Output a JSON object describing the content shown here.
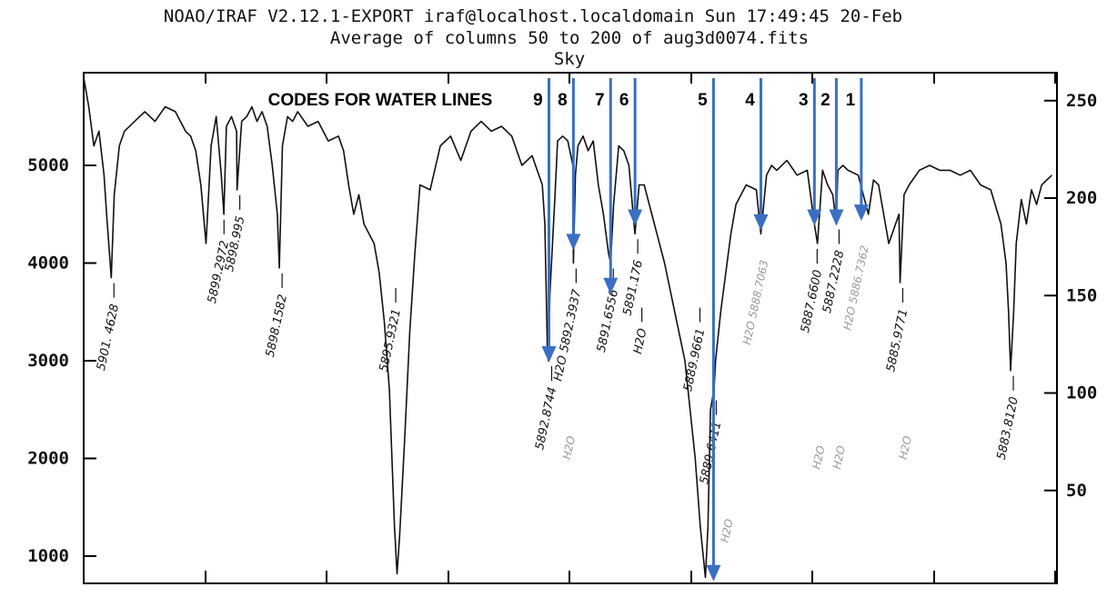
{
  "header": {
    "line1": "NOAO/IRAF V2.12.1-EXPORT iraf@localhost.localdomain Sun 17:49:45 20-Feb",
    "line2": "Average of columns 50 to 200 of aug3d0074.fits",
    "line3": "Sky"
  },
  "codes_title": "CODES FOR WATER LINES",
  "colors": {
    "spectrum": "#111111",
    "arrow": "#3a6fc4",
    "axis": "#000000",
    "note_grey": "#9a9a9a"
  },
  "chart_data": {
    "type": "line",
    "title": "Average of columns 50 to 200 of aug3d0074.fits",
    "subtitle": "Sky",
    "xlabel": "",
    "ylabel": "",
    "x_direction": "wavelength decreasing to the right",
    "xlim": [
      5902.0,
      5882.9
    ],
    "ylim": [
      620,
      5500
    ],
    "y_ticks": [
      1000,
      2000,
      3000,
      4000,
      5000
    ],
    "y_right_ticks": [
      50,
      100,
      150,
      200,
      250
    ],
    "grid": false,
    "series": [
      {
        "x": [
          5902.0,
          5901.9,
          5901.8,
          5901.7,
          5901.6,
          5901.55,
          5901.46,
          5901.4,
          5901.3,
          5901.2,
          5901.0,
          5900.8,
          5900.6,
          5900.4,
          5900.2,
          5900.0,
          5899.9,
          5899.8,
          5899.7,
          5899.6,
          5899.5,
          5899.4,
          5899.3,
          5899.25,
          5899.2,
          5899.1,
          5899.0,
          5898.99,
          5898.9,
          5898.8,
          5898.7,
          5898.6,
          5898.5,
          5898.4,
          5898.3,
          5898.2,
          5898.16,
          5898.1,
          5898.0,
          5897.9,
          5897.8,
          5897.6,
          5897.4,
          5897.2,
          5897.0,
          5896.9,
          5896.8,
          5896.7,
          5896.6,
          5896.5,
          5896.4,
          5896.3,
          5896.2,
          5896.1,
          5896.0,
          5895.95,
          5895.9,
          5895.85,
          5895.8,
          5895.7,
          5895.6,
          5895.5,
          5895.4,
          5895.2,
          5895.0,
          5894.8,
          5894.6,
          5894.4,
          5894.2,
          5894.0,
          5893.8,
          5893.6,
          5893.4,
          5893.2,
          5893.0,
          5892.95,
          5892.9,
          5892.88,
          5892.85,
          5892.8,
          5892.75,
          5892.7,
          5892.6,
          5892.5,
          5892.4,
          5892.39,
          5892.35,
          5892.3,
          5892.2,
          5892.1,
          5892.0,
          5891.9,
          5891.8,
          5891.7,
          5891.66,
          5891.6,
          5891.5,
          5891.4,
          5891.3,
          5891.2,
          5891.18,
          5891.1,
          5891.0,
          5890.9,
          5890.8,
          5890.6,
          5890.4,
          5890.2,
          5890.0,
          5889.9,
          5889.8,
          5889.75,
          5889.7,
          5889.65,
          5889.64,
          5889.6,
          5889.5,
          5889.4,
          5889.3,
          5889.2,
          5889.0,
          5888.8,
          5888.71,
          5888.6,
          5888.5,
          5888.4,
          5888.2,
          5888.0,
          5887.8,
          5887.66,
          5887.6,
          5887.5,
          5887.4,
          5887.3,
          5887.23,
          5887.2,
          5887.1,
          5887.0,
          5886.8,
          5886.6,
          5886.5,
          5886.4,
          5886.2,
          5886.0,
          5885.98,
          5885.9,
          5885.8,
          5885.6,
          5885.4,
          5885.2,
          5885.0,
          5884.8,
          5884.6,
          5884.4,
          5884.2,
          5884.0,
          5883.9,
          5883.85,
          5883.81,
          5883.75,
          5883.7,
          5883.6,
          5883.5,
          5883.4,
          5883.3,
          5883.2,
          5883.1,
          5883.0
        ],
        "y": [
          5900,
          5600,
          5200,
          5350,
          4900,
          4500,
          3850,
          4700,
          5200,
          5350,
          5450,
          5550,
          5450,
          5600,
          5550,
          5350,
          5300,
          5150,
          4800,
          4200,
          5200,
          5500,
          4900,
          4500,
          5400,
          5500,
          5350,
          4750,
          5450,
          5500,
          5600,
          5450,
          5550,
          5400,
          5000,
          4500,
          3950,
          5200,
          5500,
          5450,
          5550,
          5400,
          5450,
          5250,
          5300,
          5150,
          4800,
          4500,
          4700,
          4400,
          4300,
          4200,
          3900,
          3400,
          2700,
          2000,
          1300,
          820,
          1200,
          2200,
          3300,
          4100,
          4800,
          4750,
          5200,
          5300,
          5050,
          5350,
          5450,
          5350,
          5400,
          5300,
          5000,
          5100,
          4800,
          4400,
          3100,
          3000,
          3700,
          4200,
          4700,
          5250,
          5300,
          5250,
          5000,
          4000,
          4900,
          5200,
          5300,
          5150,
          5250,
          4800,
          4500,
          4100,
          4000,
          4600,
          5200,
          5150,
          5000,
          4400,
          4300,
          4800,
          4800,
          4600,
          4400,
          4000,
          3500,
          3000,
          2000,
          1300,
          780,
          1300,
          2500,
          2650,
          2600,
          3000,
          3500,
          3900,
          4300,
          4600,
          4800,
          4750,
          4300,
          4900,
          5000,
          4950,
          5050,
          4900,
          4950,
          4400,
          4200,
          4950,
          4800,
          4700,
          4400,
          4950,
          5000,
          4950,
          4900,
          4500,
          4850,
          4800,
          4200,
          4500,
          3800,
          4700,
          4800,
          4950,
          5000,
          4950,
          4950,
          4900,
          4950,
          4800,
          4750,
          4400,
          4000,
          3500,
          2900,
          3500,
          4200,
          4650,
          4400,
          4750,
          4600,
          4800,
          4850,
          4900
        ]
      }
    ],
    "annotations": [
      {
        "text": "5901. 4628",
        "x": 5901.46,
        "y": 3850,
        "color": "black"
      },
      {
        "text": "5899.2972",
        "x": 5899.3,
        "y": 4500,
        "color": "black"
      },
      {
        "text": "5898.995",
        "x": 5898.99,
        "y": 4750,
        "color": "black"
      },
      {
        "text": "5898.1582",
        "x": 5898.16,
        "y": 3950,
        "color": "black"
      },
      {
        "text": "5895.9321",
        "x": 5895.93,
        "y": 3800,
        "color": "black"
      },
      {
        "text": "5892.8744",
        "x": 5892.87,
        "y": 3000,
        "color": "black"
      },
      {
        "text": "H2O",
        "x": 5892.5,
        "y": 2500,
        "color": "grey"
      },
      {
        "text": "H2O 5892.3937",
        "x": 5892.39,
        "y": 4000,
        "color": "black"
      },
      {
        "text": "5891.6556",
        "x": 5891.66,
        "y": 4000,
        "color": "black"
      },
      {
        "text": "5891.176",
        "x": 5891.18,
        "y": 4300,
        "color": "black"
      },
      {
        "text": "H2O",
        "x": 5891.1,
        "y": 3600,
        "color": "black"
      },
      {
        "text": "5889.9661",
        "x": 5889.96,
        "y": 3600,
        "color": "black"
      },
      {
        "text": "5889.6411",
        "x": 5889.64,
        "y": 2650,
        "color": "black"
      },
      {
        "text": "H2O",
        "x": 5889.4,
        "y": 1650,
        "color": "grey"
      },
      {
        "text": "H2O 5888.7063",
        "x": 5888.71,
        "y": 4300,
        "color": "grey"
      },
      {
        "text": "5887.6600",
        "x": 5887.66,
        "y": 4200,
        "color": "black"
      },
      {
        "text": "H2O",
        "x": 5887.6,
        "y": 2400,
        "color": "grey"
      },
      {
        "text": "5887.2228",
        "x": 5887.23,
        "y": 4400,
        "color": "black"
      },
      {
        "text": "H2O",
        "x": 5887.2,
        "y": 2400,
        "color": "grey"
      },
      {
        "text": "H2O 5886.7362",
        "x": 5886.74,
        "y": 4450,
        "color": "grey"
      },
      {
        "text": "5885.9771",
        "x": 5885.98,
        "y": 3800,
        "color": "black"
      },
      {
        "text": "H2O",
        "x": 5885.9,
        "y": 2500,
        "color": "grey"
      },
      {
        "text": "5883.8120",
        "x": 5883.81,
        "y": 2900,
        "color": "black"
      }
    ],
    "water_line_codes": [
      {
        "code": "9",
        "x": 5892.87
      },
      {
        "code": "8",
        "x": 5892.39
      },
      {
        "code": "7",
        "x": 5891.66
      },
      {
        "code": "6",
        "x": 5891.18
      },
      {
        "code": "5",
        "x": 5889.64
      },
      {
        "code": "4",
        "x": 5888.71
      },
      {
        "code": "3",
        "x": 5887.66
      },
      {
        "code": "2",
        "x": 5887.23
      },
      {
        "code": "1",
        "x": 5886.74
      }
    ]
  }
}
